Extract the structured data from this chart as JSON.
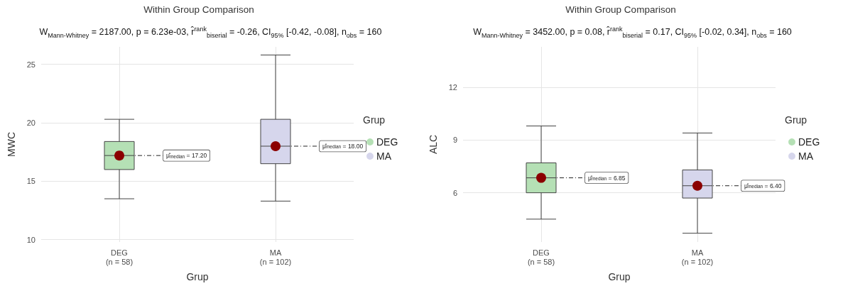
{
  "chart_data": [
    {
      "type": "box",
      "title": "Within Group Comparison",
      "subtitle": "W$_{Mann-Whitney}$ = 2187.00, p = 6.23e-03, r̂$^{rank}$$_{biserial}$ = -0.26, CI$_{95%}$ [-0.42, -0.08], n$_{obs}$ = 160",
      "xlabel": "Grup",
      "ylabel": "MWC",
      "legend_title": "Grup",
      "legend": "right",
      "grid": true,
      "categories": [
        "DEG\n(n = 58)",
        "MA\n(n = 102)"
      ],
      "ylim": [
        9.8,
        26.5
      ],
      "yticks": [
        10,
        15,
        20,
        25
      ],
      "series": [
        {
          "name": "DEG",
          "color": "#b5e0b5",
          "boxes": [
            {
              "low": 13.5,
              "q1": 16.0,
              "median": 17.2,
              "q3": 18.4,
              "high": 20.3
            },
            null
          ]
        },
        {
          "name": "MA",
          "color": "#d6d6ec",
          "boxes": [
            null,
            {
              "low": 13.3,
              "q1": 16.5,
              "median": 18.0,
              "q3": 20.3,
              "high": 25.8
            }
          ]
        },
        {
          "type": "scatter",
          "color": "#8b0000",
          "marker": "circle",
          "x": [
            "DEG\n(n = 58)",
            "MA\n(n = 102)"
          ],
          "values": [
            17.2,
            18.0
          ]
        }
      ],
      "annotations": [
        {
          "text": "μ̂$_{median}$ = 17.20",
          "x": "DEG\n(n = 58)",
          "y": 17.2
        },
        {
          "text": "μ̂$_{median}$ = 18.00",
          "x": "MA\n(n = 102)",
          "y": 18.0
        }
      ]
    },
    {
      "type": "box",
      "title": "Within Group Comparison",
      "subtitle": "W$_{Mann-Whitney}$ = 3452.00, p = 0.08, r̂$^{rank}$$_{biserial}$ = 0.17, CI$_{95%}$ [-0.02, 0.34], n$_{obs}$ = 160",
      "xlabel": "Grup",
      "ylabel": "ALC",
      "legend_title": "Grup",
      "legend": "right",
      "grid": true,
      "categories": [
        "DEG\n(n = 58)",
        "MA\n(n = 102)"
      ],
      "ylim": [
        3.2,
        14.3
      ],
      "yticks": [
        6,
        9,
        12
      ],
      "series": [
        {
          "name": "DEG",
          "color": "#b5e0b5",
          "boxes": [
            {
              "low": 4.5,
              "q1": 6.0,
              "median": 6.85,
              "q3": 7.7,
              "high": 9.8
            },
            null
          ]
        },
        {
          "name": "MA",
          "color": "#d6d6ec",
          "boxes": [
            null,
            {
              "low": 3.7,
              "q1": 5.7,
              "median": 6.4,
              "q3": 7.3,
              "high": 9.4
            }
          ]
        },
        {
          "type": "scatter",
          "color": "#8b0000",
          "marker": "circle",
          "x": [
            "DEG\n(n = 58)",
            "MA\n(n = 102)"
          ],
          "values": [
            6.85,
            6.4
          ]
        }
      ],
      "annotations": [
        {
          "text": "μ̂$_{median}$ = 6.85",
          "x": "DEG\n(n = 58)",
          "y": 6.85
        },
        {
          "text": "μ̂$_{median}$ = 6.40",
          "x": "MA\n(n = 102)",
          "y": 6.4
        }
      ]
    }
  ]
}
